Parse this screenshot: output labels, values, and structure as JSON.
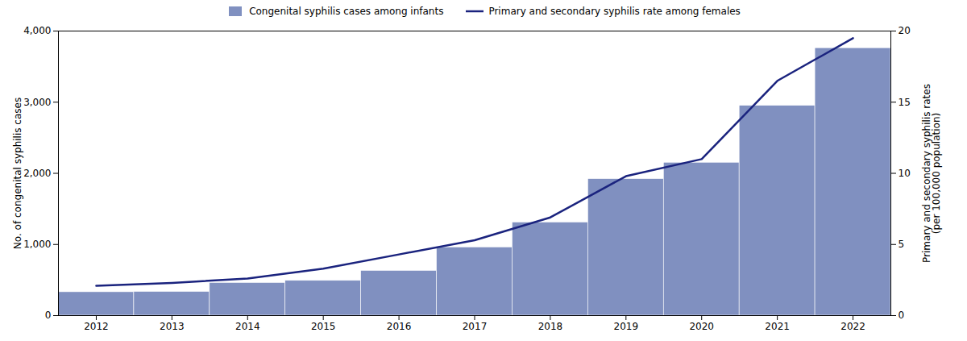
{
  "chart_data": {
    "type": "bar",
    "x": [
      2012,
      2013,
      2014,
      2015,
      2016,
      2017,
      2018,
      2019,
      2020,
      2021,
      2022
    ],
    "xlim": [
      2011.5,
      2022.5
    ],
    "xticks": [
      2012,
      2013,
      2014,
      2015,
      2016,
      2017,
      2018,
      2019,
      2020,
      2021,
      2022
    ],
    "ylabel": "No. of congenital syphilis cases",
    "y2label": "Primary and secondary syphilis rates\n(per 100,000 population)",
    "ylim": [
      0,
      4000
    ],
    "yticks": [
      0,
      {
        "value": 1000,
        "label": "1,000"
      },
      {
        "value": 2000,
        "label": "2,000"
      },
      {
        "value": 3000,
        "label": "3,000"
      },
      {
        "value": 4000,
        "label": "4,000"
      }
    ],
    "y2lim": [
      0,
      20
    ],
    "y2ticks": [
      0,
      5,
      10,
      15,
      20
    ],
    "grid": false,
    "legend": "top",
    "series": [
      {
        "name": "Congenital syphilis cases among infants",
        "type": "bar",
        "color": "#8090c0",
        "values": [
          330,
          335,
          460,
          490,
          630,
          960,
          1310,
          1920,
          2150,
          2950,
          3760
        ]
      },
      {
        "name": "Primary and secondary syphilis rate among females",
        "type": "line",
        "color": "#1a237e",
        "axis": "y2",
        "values": [
          2.1,
          2.3,
          2.6,
          3.3,
          4.3,
          5.3,
          6.9,
          9.8,
          11.0,
          16.5,
          19.5
        ]
      }
    ]
  }
}
